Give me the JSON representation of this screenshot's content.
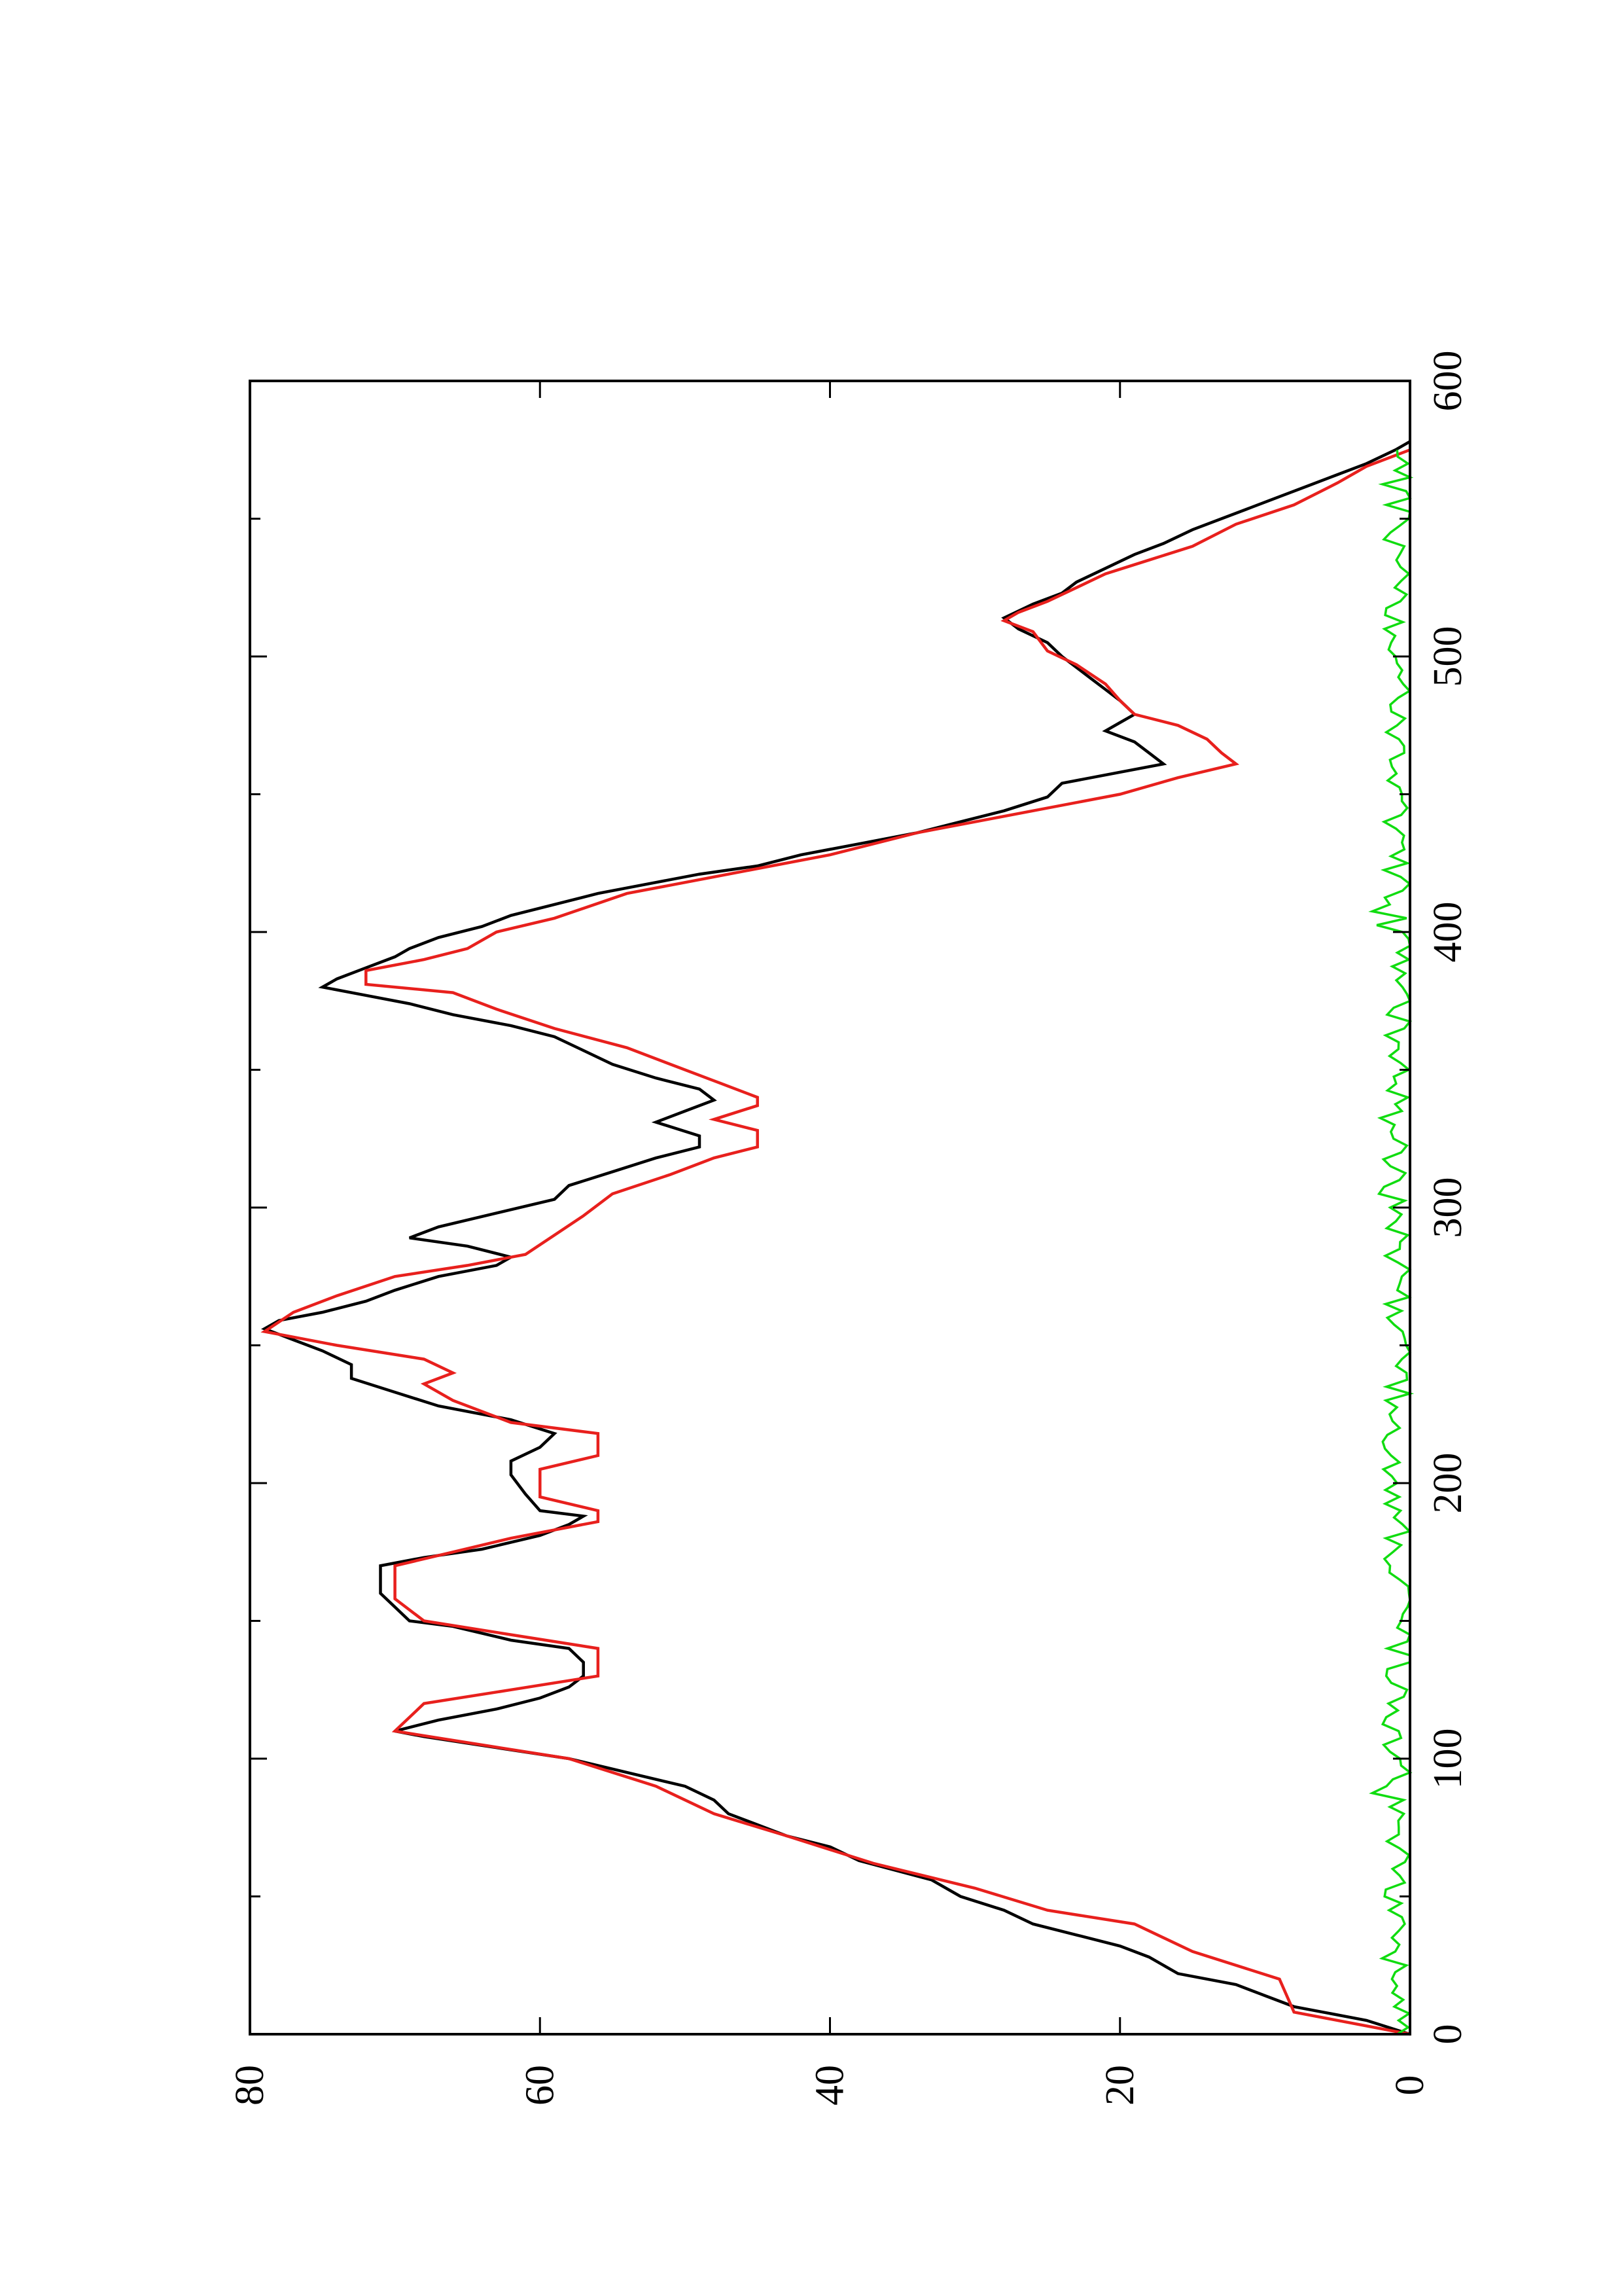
{
  "chart_data": {
    "type": "line",
    "title": "",
    "xlabel": "",
    "ylabel": "",
    "orientation": "rotated 90 degrees counter-clockwise on the page",
    "xlim": [
      0,
      600
    ],
    "ylim": [
      0,
      80
    ],
    "x_ticks": [
      0,
      100,
      200,
      300,
      400,
      500,
      600
    ],
    "x_tick_labels": [
      "0",
      "100",
      "200",
      "300",
      "400",
      "500",
      "600"
    ],
    "x_minor_ticks": [
      50,
      150,
      250,
      350,
      450,
      550
    ],
    "y_ticks": [
      0,
      20,
      40,
      60,
      80
    ],
    "y_tick_labels": [
      "0",
      "20",
      "40",
      "60",
      "80"
    ],
    "grid": false,
    "legend": "none",
    "series": [
      {
        "color": "#000000",
        "style": "smooth",
        "points": [
          [
            0,
            0
          ],
          [
            5,
            3
          ],
          [
            10,
            8
          ],
          [
            14,
            10
          ],
          [
            18,
            12
          ],
          [
            22,
            16
          ],
          [
            28,
            18
          ],
          [
            32,
            20
          ],
          [
            36,
            23
          ],
          [
            40,
            26
          ],
          [
            45,
            28
          ],
          [
            50,
            31
          ],
          [
            56,
            33
          ],
          [
            63,
            38
          ],
          [
            68,
            40
          ],
          [
            72,
            43
          ],
          [
            76,
            45
          ],
          [
            80,
            47
          ],
          [
            85,
            48
          ],
          [
            90,
            50
          ],
          [
            95,
            54
          ],
          [
            100,
            58
          ],
          [
            104,
            63
          ],
          [
            108,
            68
          ],
          [
            110,
            70
          ],
          [
            114,
            67
          ],
          [
            118,
            63
          ],
          [
            122,
            60
          ],
          [
            126,
            58
          ],
          [
            130,
            57
          ],
          [
            135,
            57
          ],
          [
            140,
            58
          ],
          [
            143,
            62
          ],
          [
            148,
            66
          ],
          [
            150,
            69
          ],
          [
            155,
            70
          ],
          [
            160,
            71
          ],
          [
            166,
            71
          ],
          [
            170,
            71
          ],
          [
            173,
            68
          ],
          [
            176,
            64
          ],
          [
            181,
            60
          ],
          [
            185,
            58
          ],
          [
            188,
            57
          ],
          [
            190,
            60
          ],
          [
            196,
            61
          ],
          [
            203,
            62
          ],
          [
            208,
            62
          ],
          [
            213,
            60
          ],
          [
            218,
            59
          ],
          [
            223,
            62
          ],
          [
            228,
            67
          ],
          [
            233,
            70
          ],
          [
            238,
            73
          ],
          [
            243,
            73
          ],
          [
            248,
            75
          ],
          [
            252,
            77
          ],
          [
            256,
            79
          ],
          [
            259,
            78
          ],
          [
            262,
            75
          ],
          [
            266,
            72
          ],
          [
            270,
            70
          ],
          [
            275,
            67
          ],
          [
            279,
            63
          ],
          [
            282,
            62
          ],
          [
            286,
            65
          ],
          [
            289,
            69
          ],
          [
            293,
            67
          ],
          [
            298,
            63
          ],
          [
            303,
            59
          ],
          [
            308,
            58
          ],
          [
            313,
            55
          ],
          [
            318,
            52
          ],
          [
            322,
            49
          ],
          [
            326,
            49
          ],
          [
            331,
            52
          ],
          [
            335,
            50
          ],
          [
            339,
            48
          ],
          [
            343,
            49
          ],
          [
            347,
            52
          ],
          [
            352,
            55
          ],
          [
            357,
            57
          ],
          [
            362,
            59
          ],
          [
            366,
            62
          ],
          [
            370,
            66
          ],
          [
            374,
            69
          ],
          [
            377,
            72
          ],
          [
            380,
            75
          ],
          [
            383,
            74
          ],
          [
            387,
            72
          ],
          [
            391,
            70
          ],
          [
            394,
            69
          ],
          [
            398,
            67
          ],
          [
            402,
            64
          ],
          [
            406,
            62
          ],
          [
            410,
            59
          ],
          [
            414,
            56
          ],
          [
            418,
            52
          ],
          [
            421,
            49
          ],
          [
            424,
            45
          ],
          [
            428,
            42
          ],
          [
            432,
            38
          ],
          [
            436,
            34
          ],
          [
            440,
            31
          ],
          [
            444,
            28
          ],
          [
            449,
            25
          ],
          [
            454,
            24
          ],
          [
            458,
            20
          ],
          [
            461,
            17
          ],
          [
            465,
            18
          ],
          [
            469,
            19
          ],
          [
            473,
            21
          ],
          [
            476,
            20
          ],
          [
            479,
            19
          ],
          [
            484,
            20
          ],
          [
            488,
            21
          ],
          [
            492,
            22
          ],
          [
            496,
            23
          ],
          [
            500,
            24
          ],
          [
            505,
            25
          ],
          [
            510,
            27
          ],
          [
            514,
            28
          ],
          [
            519,
            26
          ],
          [
            523,
            24
          ],
          [
            527,
            23
          ],
          [
            532,
            21
          ],
          [
            537,
            19
          ],
          [
            541,
            17
          ],
          [
            546,
            15
          ],
          [
            550,
            13
          ],
          [
            554,
            11
          ],
          [
            558,
            9
          ],
          [
            562,
            7
          ],
          [
            566,
            5
          ],
          [
            570,
            3
          ],
          [
            575,
            1
          ],
          [
            578,
            0
          ]
        ]
      },
      {
        "color": "#e8201d",
        "style": "step",
        "points": [
          [
            0,
            0
          ],
          [
            8,
            8
          ],
          [
            20,
            9
          ],
          [
            30,
            15
          ],
          [
            40,
            19
          ],
          [
            45,
            25
          ],
          [
            53,
            30
          ],
          [
            62,
            37
          ],
          [
            72,
            43
          ],
          [
            80,
            48
          ],
          [
            90,
            52
          ],
          [
            100,
            58
          ],
          [
            110,
            70
          ],
          [
            120,
            68
          ],
          [
            125,
            62
          ],
          [
            130,
            56
          ],
          [
            140,
            56
          ],
          [
            145,
            62
          ],
          [
            150,
            68
          ],
          [
            158,
            70
          ],
          [
            170,
            70
          ],
          [
            175,
            66
          ],
          [
            180,
            62
          ],
          [
            186,
            56
          ],
          [
            190,
            56
          ],
          [
            195,
            60
          ],
          [
            205,
            60
          ],
          [
            210,
            56
          ],
          [
            218,
            56
          ],
          [
            222,
            62
          ],
          [
            230,
            66
          ],
          [
            236,
            68
          ],
          [
            240,
            66
          ],
          [
            245,
            68
          ],
          [
            250,
            74
          ],
          [
            255,
            79
          ],
          [
            262,
            77
          ],
          [
            268,
            74
          ],
          [
            275,
            70
          ],
          [
            279,
            65
          ],
          [
            283,
            61
          ],
          [
            290,
            59
          ],
          [
            297,
            57
          ],
          [
            305,
            55
          ],
          [
            312,
            51
          ],
          [
            318,
            48
          ],
          [
            322,
            45
          ],
          [
            328,
            45
          ],
          [
            332,
            48
          ],
          [
            337,
            45
          ],
          [
            340,
            45
          ],
          [
            346,
            48
          ],
          [
            352,
            51
          ],
          [
            358,
            54
          ],
          [
            365,
            59
          ],
          [
            372,
            63
          ],
          [
            378,
            66
          ],
          [
            381,
            72
          ],
          [
            386,
            72
          ],
          [
            390,
            68
          ],
          [
            394,
            65
          ],
          [
            400,
            63
          ],
          [
            405,
            59
          ],
          [
            414,
            54
          ],
          [
            420,
            48
          ],
          [
            428,
            40
          ],
          [
            436,
            34
          ],
          [
            442,
            28
          ],
          [
            450,
            20
          ],
          [
            456,
            16
          ],
          [
            461,
            12
          ],
          [
            465,
            13
          ],
          [
            470,
            14
          ],
          [
            475,
            16
          ],
          [
            479,
            19
          ],
          [
            484,
            20
          ],
          [
            490,
            21
          ],
          [
            497,
            23
          ],
          [
            502,
            25
          ],
          [
            509,
            26
          ],
          [
            513,
            28
          ],
          [
            516,
            27
          ],
          [
            520,
            25
          ],
          [
            525,
            23
          ],
          [
            530,
            21
          ],
          [
            535,
            18
          ],
          [
            540,
            15
          ],
          [
            548,
            12
          ],
          [
            555,
            8
          ],
          [
            563,
            5
          ],
          [
            569,
            3
          ],
          [
            575,
            0
          ]
        ]
      },
      {
        "color": "#10dc10",
        "style": "noisy",
        "mean": 0.9,
        "max": 2.6,
        "x_range": [
          0,
          575
        ]
      }
    ]
  }
}
